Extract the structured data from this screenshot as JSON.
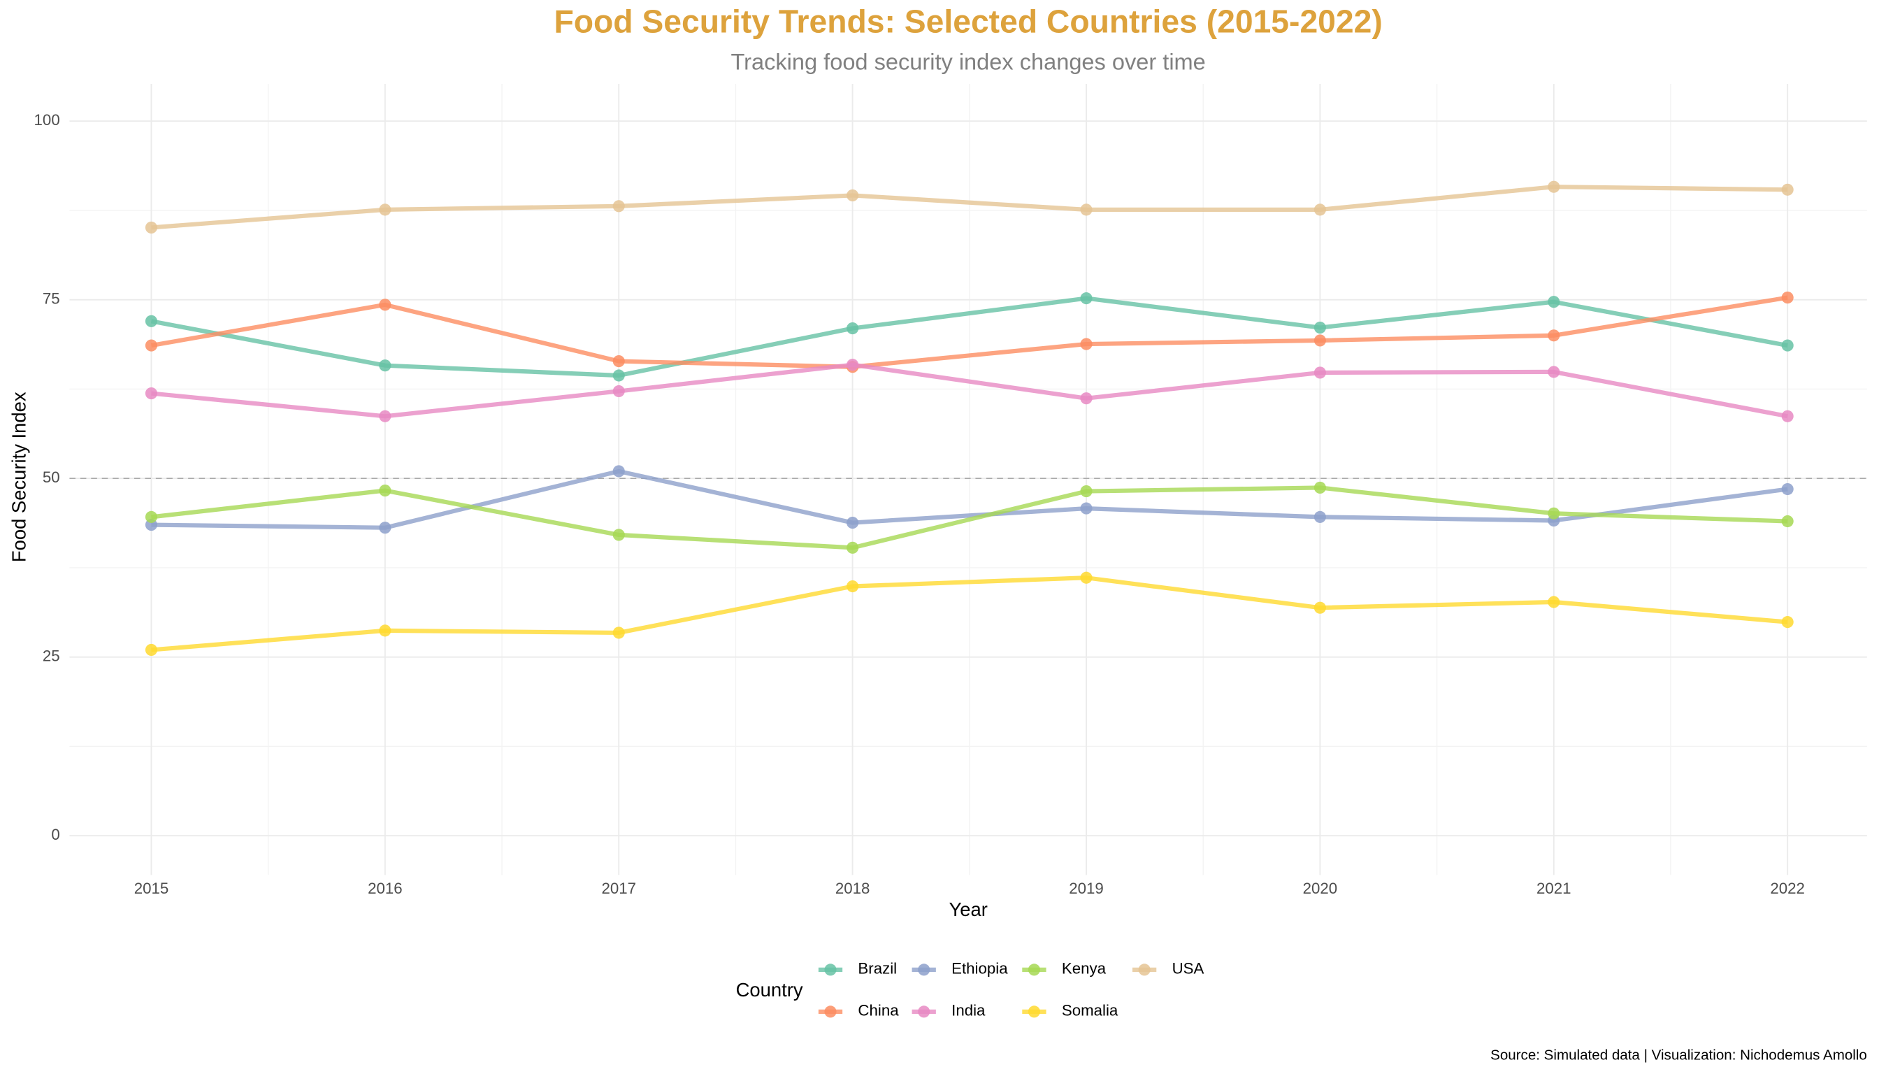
{
  "chart_data": {
    "type": "line",
    "title": "Food Security Trends: Selected Countries (2015-2022)",
    "subtitle": "Tracking food security index changes over time",
    "x_label": "Year",
    "y_label": "Food Security Index",
    "legend_title": "Country",
    "caption": "Source: Simulated data | Visualization: Nichodemus Amollo",
    "x": [
      2015,
      2016,
      2017,
      2018,
      2019,
      2020,
      2021,
      2022
    ],
    "xlim": [
      2014.65,
      2022.34
    ],
    "xticks": [
      2015,
      2016,
      2017,
      2018,
      2019,
      2020,
      2021,
      2022
    ],
    "ylim": [
      -5.5,
      105.2
    ],
    "yticks": [
      0,
      25,
      50,
      75,
      100
    ],
    "reference_line": 50,
    "grid": true,
    "legend": "bottom",
    "series": [
      {
        "name": "Brazil",
        "color": "#66c2a5",
        "values": [
          72.0,
          65.8,
          64.4,
          71.0,
          75.2,
          71.1,
          74.7,
          68.6
        ]
      },
      {
        "name": "China",
        "color": "#fc8d62",
        "values": [
          68.6,
          74.3,
          66.4,
          65.6,
          68.8,
          69.3,
          70.0,
          75.3
        ]
      },
      {
        "name": "Ethiopia",
        "color": "#8da0cb",
        "values": [
          43.5,
          43.1,
          51.0,
          43.8,
          45.8,
          44.6,
          44.1,
          48.5
        ]
      },
      {
        "name": "India",
        "color": "#e78ac3",
        "values": [
          61.9,
          58.7,
          62.2,
          65.9,
          61.2,
          64.8,
          64.9,
          58.7
        ]
      },
      {
        "name": "Kenya",
        "color": "#a6d854",
        "values": [
          44.6,
          48.3,
          42.1,
          40.3,
          48.2,
          48.7,
          45.1,
          44.0
        ]
      },
      {
        "name": "Somalia",
        "color": "#ffd92f",
        "values": [
          26.0,
          28.7,
          28.4,
          34.9,
          36.1,
          31.9,
          32.7,
          29.9
        ]
      },
      {
        "name": "USA",
        "color": "#e5c494",
        "values": [
          85.1,
          87.6,
          88.1,
          89.6,
          87.6,
          87.6,
          90.8,
          90.4
        ]
      }
    ]
  }
}
